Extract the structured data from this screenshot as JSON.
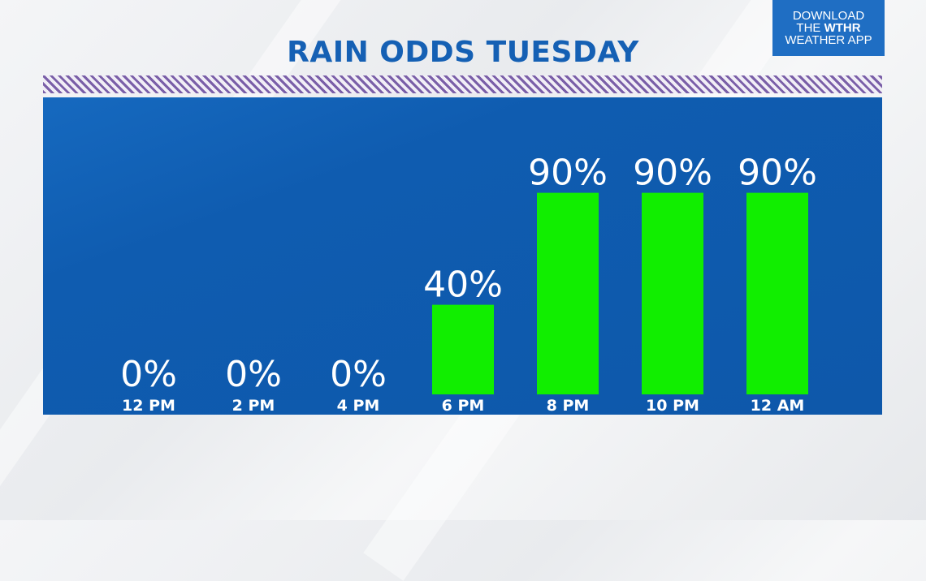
{
  "title": "RAIN ODDS TUESDAY",
  "app_badge": {
    "line1": "DOWNLOAD",
    "line2_prefix": "THE ",
    "line2_brand": "WTHR",
    "line3": "WEATHER APP"
  },
  "colors": {
    "bar": "#11ee00",
    "panel": "#0f5cb0",
    "title": "#1560b4",
    "hatch": "#7a5fa8"
  },
  "chart_data": {
    "type": "bar",
    "title": "RAIN ODDS TUESDAY",
    "categories": [
      "12 PM",
      "2 PM",
      "4 PM",
      "6 PM",
      "8 PM",
      "10 PM",
      "12 AM"
    ],
    "values": [
      0,
      0,
      0,
      40,
      90,
      90,
      90
    ],
    "data_labels": [
      "0%",
      "0%",
      "0%",
      "40%",
      "90%",
      "90%",
      "90%"
    ],
    "ylim": [
      0,
      100
    ],
    "xlabel": "",
    "ylabel": "",
    "grid": false,
    "legend": "none"
  }
}
